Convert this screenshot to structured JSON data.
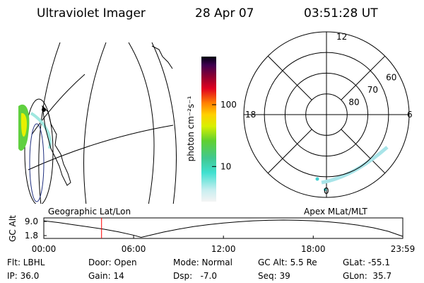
{
  "header": {
    "instrument": "Ultraviolet Imager",
    "date": "28 Apr 07",
    "time": "03:51:28 UT"
  },
  "colorbar": {
    "label": "photon cm⁻²s⁻¹",
    "lim": [
      2.7,
      600
    ],
    "log": true,
    "ticks": [
      10,
      100
    ]
  },
  "polar": {
    "hour_labels": [
      "12",
      "18",
      "6",
      "0"
    ],
    "lat_labels": [
      80,
      70,
      60
    ]
  },
  "map_titles": {
    "left": "Geographic Lat/Lon",
    "right": "Apex MLat/MLT"
  },
  "altitude_plot": {
    "ylabel": "GC Alt",
    "xlim": [
      0,
      23.983
    ],
    "ylim": [
      0.36,
      10.8
    ],
    "yticks": [
      {
        "value": 9,
        "label": "9.0"
      },
      1.8
    ],
    "xticks": [
      {
        "value": 0,
        "label": "00:00"
      },
      {
        "value": 6,
        "label": "06:00"
      },
      {
        "value": 12,
        "label": "12:00"
      },
      {
        "value": 18,
        "label": "18:00"
      },
      {
        "value": 23.983,
        "label": "23:59"
      }
    ],
    "x": [
      0,
      1,
      2,
      3,
      4,
      5,
      6,
      6.5,
      7,
      8,
      9,
      10,
      11,
      12,
      13,
      14,
      15,
      16,
      17,
      18,
      19,
      20,
      21,
      22,
      23,
      23.983
    ],
    "values": [
      9.3,
      8.4,
      7.3,
      6.2,
      5.1,
      3.7,
      2.0,
      0.9,
      1.8,
      3.6,
      5.1,
      6.4,
      7.4,
      8.2,
      8.8,
      9.3,
      9.6,
      9.7,
      9.6,
      9.3,
      8.8,
      8.1,
      7.1,
      5.8,
      4.0,
      1.4
    ],
    "line_color": "#000000",
    "marker_time": 3.858,
    "marker_color": "#ff0000"
  },
  "status": [
    [
      "Flt: LBHL",
      "IP: 36.0"
    ],
    [
      "Door: Open",
      "Gain: 14"
    ],
    [
      "Mode: Normal",
      "Dsp:   -7.0"
    ],
    [
      "GC Alt: 5.5 Re",
      "Seq: 39"
    ],
    [
      "GLat: -55.1",
      "GLon:  35.7"
    ]
  ]
}
